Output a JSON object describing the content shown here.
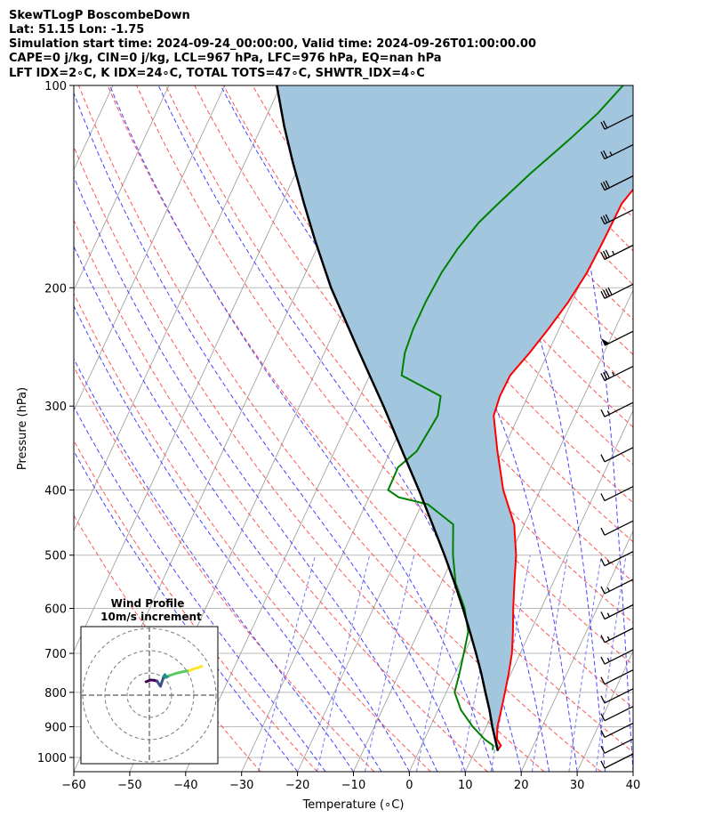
{
  "title_lines": [
    "SkewTLogP BoscombeDown",
    "Lat: 51.15   Lon: -1.75",
    "Simulation start time: 2024-09-24_00:00:00, Valid time: 2024-09-26T01:00:00.00",
    "CAPE=0 j/kg, CIN=0 j/kg, LCL=967 hPa, LFC=976 hPa, EQ=nan hPa",
    "LFT IDX=2∘C, K IDX=24∘C, TOTAL TOTS=47∘C, SHWTR_IDX=4∘C"
  ],
  "colors": {
    "temperature": "#ff0000",
    "dewpoint": "#008000",
    "parcel": "#000000",
    "cape_fill": "#a3c6df",
    "dry_adiabat": "#ff5555",
    "moist_adiabat": "#4444ff",
    "mixing_ratio": "#7777ee",
    "isotherm": "#999999",
    "grid": "#bbbbbb"
  },
  "chart_data": {
    "type": "skewt",
    "xlabel": "Temperature (∘C)",
    "ylabel": "Pressure (hPa)",
    "xlim": [
      -60,
      40
    ],
    "ylim": [
      1050,
      100
    ],
    "x_ticks": [
      "−60",
      "−50",
      "−40",
      "−30",
      "−20",
      "−10",
      "0",
      "10",
      "20",
      "30",
      "40"
    ],
    "y_ticks": [
      "100",
      "200",
      "300",
      "400",
      "500",
      "600",
      "700",
      "800",
      "900",
      "1000"
    ],
    "y_tick_values": [
      100,
      200,
      300,
      400,
      500,
      600,
      700,
      800,
      900,
      1000
    ],
    "grid": true,
    "series": [
      {
        "key": "temperature",
        "points": [
          [
            975,
            14.0
          ],
          [
            960,
            14.2
          ],
          [
            940,
            13.0
          ],
          [
            900,
            12.0
          ],
          [
            850,
            11.3
          ],
          [
            800,
            10.5
          ],
          [
            750,
            9.6
          ],
          [
            700,
            8.5
          ],
          [
            650,
            6.9
          ],
          [
            600,
            5.0
          ],
          [
            550,
            3.1
          ],
          [
            500,
            1.1
          ],
          [
            450,
            -1.8
          ],
          [
            400,
            -6.6
          ],
          [
            350,
            -10.9
          ],
          [
            310,
            -14.5
          ],
          [
            290,
            -15.0
          ],
          [
            270,
            -14.9
          ],
          [
            250,
            -13.3
          ],
          [
            230,
            -11.9
          ],
          [
            210,
            -10.6
          ],
          [
            190,
            -9.7
          ],
          [
            170,
            -9.4
          ],
          [
            150,
            -9.2
          ],
          [
            140,
            -8.0
          ],
          [
            130,
            -7.6
          ],
          [
            120,
            -5.6
          ],
          [
            110,
            -4.3
          ],
          [
            100,
            -3.1
          ]
        ]
      },
      {
        "key": "dewpoint",
        "points": [
          [
            975,
            13.1
          ],
          [
            960,
            12.8
          ],
          [
            940,
            10.8
          ],
          [
            900,
            7.6
          ],
          [
            850,
            4.1
          ],
          [
            800,
            1.5
          ],
          [
            750,
            0.8
          ],
          [
            700,
            -0.1
          ],
          [
            650,
            -1.1
          ],
          [
            600,
            -3.7
          ],
          [
            550,
            -7.4
          ],
          [
            500,
            -10.2
          ],
          [
            450,
            -12.7
          ],
          [
            420,
            -18.9
          ],
          [
            410,
            -24.7
          ],
          [
            400,
            -27.2
          ],
          [
            370,
            -27.3
          ],
          [
            350,
            -25.3
          ],
          [
            310,
            -24.5
          ],
          [
            290,
            -25.6
          ],
          [
            270,
            -34.3
          ],
          [
            250,
            -35.6
          ],
          [
            230,
            -36.1
          ],
          [
            210,
            -36.1
          ],
          [
            190,
            -35.7
          ],
          [
            175,
            -34.8
          ],
          [
            160,
            -33.2
          ],
          [
            150,
            -31.3
          ],
          [
            135,
            -28.0
          ],
          [
            120,
            -23.8
          ],
          [
            110,
            -21.0
          ],
          [
            100,
            -18.8
          ]
        ]
      },
      {
        "key": "parcel",
        "points": [
          [
            978,
            14.1
          ],
          [
            967,
            13.7
          ],
          [
            900,
            11.1
          ],
          [
            850,
            9.2
          ],
          [
            800,
            7.0
          ],
          [
            750,
            4.7
          ],
          [
            700,
            2.1
          ],
          [
            650,
            -0.8
          ],
          [
            600,
            -4.0
          ],
          [
            550,
            -7.6
          ],
          [
            500,
            -11.7
          ],
          [
            450,
            -16.4
          ],
          [
            400,
            -21.7
          ],
          [
            350,
            -27.9
          ],
          [
            300,
            -35.0
          ],
          [
            250,
            -43.7
          ],
          [
            200,
            -54.2
          ],
          [
            170,
            -61.0
          ],
          [
            150,
            -66.0
          ],
          [
            130,
            -71.5
          ],
          [
            115,
            -76.0
          ],
          [
            100,
            -80.7
          ]
        ]
      }
    ],
    "wind_barbs": [
      {
        "p": 1000,
        "speed_kt": 10
      },
      {
        "p": 950,
        "speed_kt": 10
      },
      {
        "p": 900,
        "speed_kt": 10
      },
      {
        "p": 850,
        "speed_kt": 10
      },
      {
        "p": 800,
        "speed_kt": 10
      },
      {
        "p": 750,
        "speed_kt": 10
      },
      {
        "p": 700,
        "speed_kt": 15
      },
      {
        "p": 650,
        "speed_kt": 15
      },
      {
        "p": 600,
        "speed_kt": 15
      },
      {
        "p": 550,
        "speed_kt": 15
      },
      {
        "p": 500,
        "speed_kt": 15
      },
      {
        "p": 450,
        "speed_kt": 10
      },
      {
        "p": 400,
        "speed_kt": 10
      },
      {
        "p": 350,
        "speed_kt": 10
      },
      {
        "p": 300,
        "speed_kt": 15
      },
      {
        "p": 265,
        "speed_kt": 35
      },
      {
        "p": 235,
        "speed_kt": 50
      },
      {
        "p": 200,
        "speed_kt": 40
      },
      {
        "p": 175,
        "speed_kt": 35
      },
      {
        "p": 155,
        "speed_kt": 30
      },
      {
        "p": 138,
        "speed_kt": 30
      },
      {
        "p": 124,
        "speed_kt": 25
      },
      {
        "p": 112,
        "speed_kt": 20
      }
    ],
    "hodograph": {
      "title": "Wind Profile",
      "subtitle": "10m/s increment",
      "points": [
        [
          -1.5,
          6.0
        ],
        [
          -0.5,
          6.4
        ],
        [
          0.5,
          6.8
        ],
        [
          2.0,
          6.7
        ],
        [
          3.5,
          6.3
        ],
        [
          4.3,
          5.0
        ],
        [
          5.0,
          4.0
        ],
        [
          6.5,
          8.5
        ],
        [
          7.0,
          9.2
        ],
        [
          7.5,
          8.0
        ],
        [
          9.0,
          8.8
        ],
        [
          12.0,
          9.8
        ],
        [
          15.0,
          10.5
        ],
        [
          18.0,
          11.0
        ],
        [
          20.0,
          11.8
        ],
        [
          22.0,
          12.4
        ],
        [
          23.5,
          13.0
        ]
      ]
    }
  }
}
